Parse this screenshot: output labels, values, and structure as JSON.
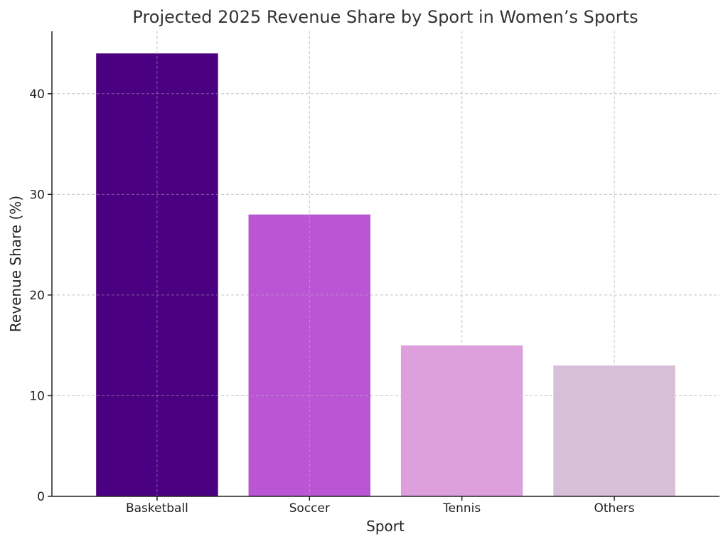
{
  "chart_data": {
    "type": "bar",
    "title": "Projected 2025 Revenue Share by Sport in Women’s Sports",
    "xlabel": "Sport",
    "ylabel": "Revenue Share (%)",
    "categories": [
      "Basketball",
      "Soccer",
      "Tennis",
      "Others"
    ],
    "values": [
      44,
      28,
      15,
      13
    ],
    "colors": [
      "#4b0082",
      "#ba55d3",
      "#dda0dd",
      "#d8bfd8"
    ],
    "ylim": [
      0,
      46.2
    ],
    "yticks": [
      0,
      10,
      20,
      30,
      40
    ],
    "grid": true
  }
}
